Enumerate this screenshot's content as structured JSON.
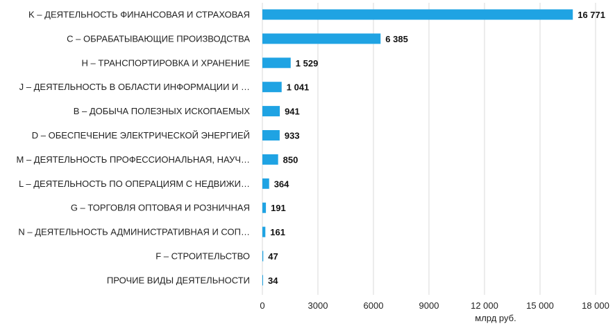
{
  "chart_data": {
    "type": "bar",
    "orientation": "horizontal",
    "categories": [
      "K – ДЕЯТЕЛЬНОСТЬ ФИНАНСОВАЯ И СТРАХОВАЯ",
      "C – ОБРАБАТЫВАЮЩИЕ ПРОИЗВОДСТВА",
      "H – ТРАНСПОРТИРОВКА И ХРАНЕНИЕ",
      "J – ДЕЯТЕЛЬНОСТЬ В ОБЛАСТИ ИНФОРМАЦИИ И …",
      "B – ДОБЫЧА ПОЛЕЗНЫХ ИСКОПАЕМЫХ",
      "D – ОБЕСПЕЧЕНИЕ ЭЛЕКТРИЧЕСКОЙ ЭНЕРГИЕЙ",
      "M – ДЕЯТЕЛЬНОСТЬ ПРОФЕССИОНАЛЬНАЯ, НАУЧ…",
      "L – ДЕЯТЕЛЬНОСТЬ ПО ОПЕРАЦИЯМ С НЕДВИЖИ…",
      "G – ТОРГОВЛЯ ОПТОВАЯ И РОЗНИЧНАЯ",
      "N – ДЕЯТЕЛЬНОСТЬ АДМИНИСТРАТИВНАЯ И СОП…",
      "F – СТРОИТЕЛЬСТВО",
      "ПРОЧИЕ ВИДЫ ДЕЯТЕЛЬНОСТИ"
    ],
    "values": [
      16771,
      6385,
      1529,
      1041,
      941,
      933,
      850,
      364,
      191,
      161,
      47,
      34
    ],
    "value_labels": [
      "16 771",
      "6 385",
      "1 529",
      "1 041",
      "941",
      "933",
      "850",
      "364",
      "191",
      "161",
      "47",
      "34"
    ],
    "xlim": [
      0,
      18000
    ],
    "xticks": [
      0,
      3000,
      6000,
      9000,
      12000,
      15000,
      18000
    ],
    "xtick_labels": [
      "0",
      "3000",
      "6000",
      "9000",
      "12 000",
      "15 000",
      "18 000"
    ],
    "xlabel": "млрд руб.",
    "ylabel": "",
    "title": "",
    "grid": "vertical",
    "legend": "none",
    "colors": {
      "bar": "#1fa3e3",
      "grid": "#d9d9d9",
      "text": "#222222"
    }
  }
}
